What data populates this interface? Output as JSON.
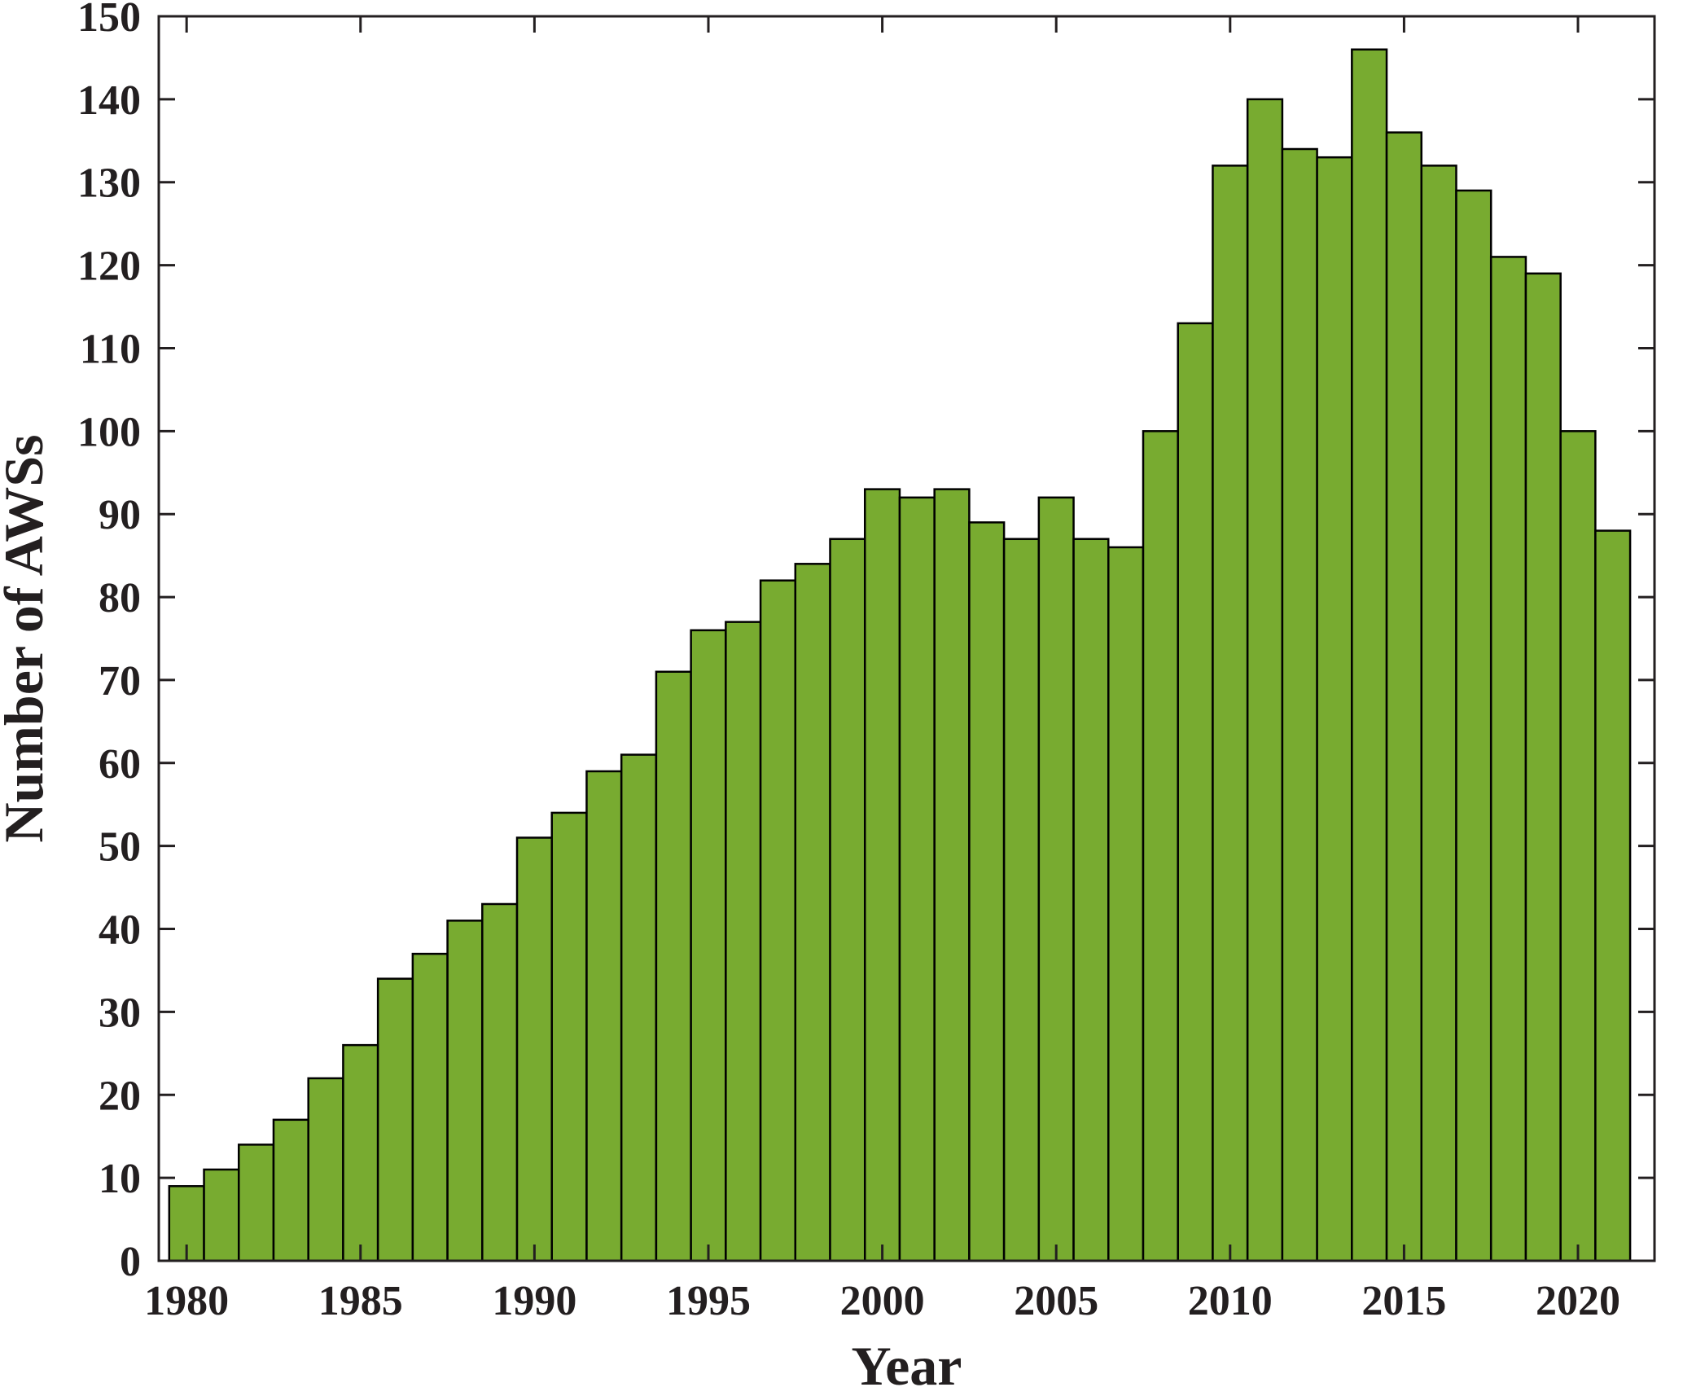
{
  "chart_data": {
    "type": "bar",
    "title": "",
    "xlabel": "Year",
    "ylabel": "Number of AWSs",
    "x": [
      1980,
      1981,
      1982,
      1983,
      1984,
      1985,
      1986,
      1987,
      1988,
      1989,
      1990,
      1991,
      1992,
      1993,
      1994,
      1995,
      1996,
      1997,
      1998,
      1999,
      2000,
      2001,
      2002,
      2003,
      2004,
      2005,
      2006,
      2007,
      2008,
      2009,
      2010,
      2011,
      2012,
      2013,
      2014,
      2015,
      2016,
      2017,
      2018,
      2019,
      2020,
      2021
    ],
    "values": [
      9,
      11,
      14,
      17,
      22,
      26,
      34,
      37,
      41,
      43,
      51,
      54,
      59,
      61,
      71,
      76,
      77,
      82,
      84,
      87,
      93,
      92,
      93,
      89,
      87,
      92,
      87,
      86,
      100,
      113,
      132,
      140,
      134,
      133,
      146,
      136,
      132,
      129,
      121,
      119,
      100,
      88
    ],
    "xlim": [
      1979.2,
      1981.2
    ],
    "xlim_note": "",
    "x_range": [
      1979.2,
      2022.2
    ],
    "ylim": [
      0,
      150
    ],
    "xticks": [
      "1980",
      "1985",
      "1990",
      "1995",
      "2000",
      "2005",
      "2010",
      "2015",
      "2020"
    ],
    "yticks": [
      "0",
      "10",
      "20",
      "30",
      "40",
      "50",
      "60",
      "70",
      "80",
      "90",
      "100",
      "110",
      "120",
      "130",
      "140",
      "150"
    ],
    "grid": false,
    "legend": "none",
    "colors": {
      "bar_fill": "#78ab30",
      "bar_edge": "#000000",
      "axis": "#231f20",
      "text": "#231f20"
    }
  }
}
